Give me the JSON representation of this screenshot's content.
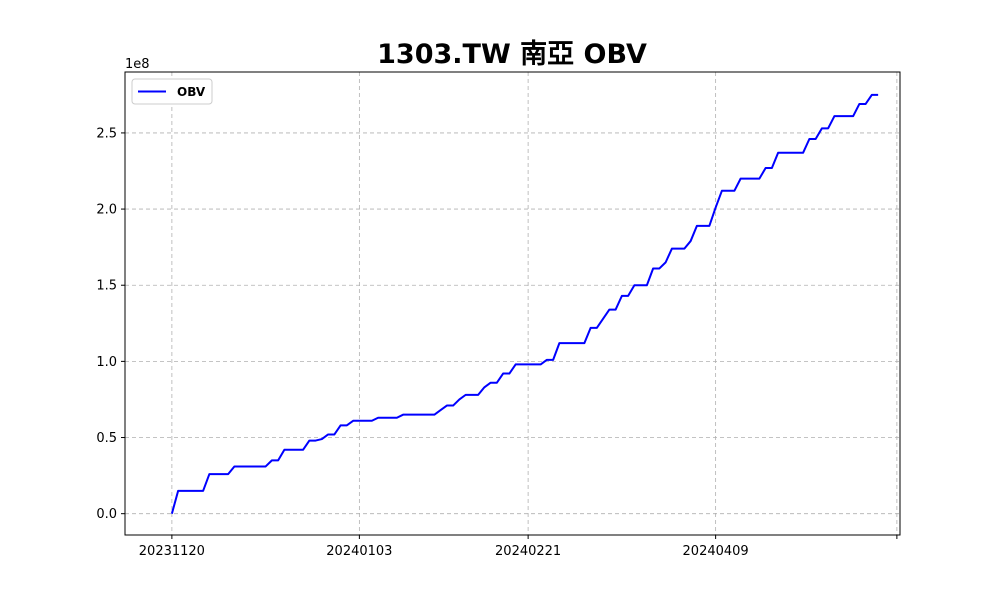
{
  "chart_data": {
    "type": "line",
    "title": "1303.TW 南亞 OBV",
    "xlabel": "",
    "ylabel": "",
    "y_multiplier_label": "1e8",
    "ylim": [
      -0.14,
      2.9
    ],
    "y_ticks": [
      0.0,
      0.5,
      1.0,
      1.5,
      2.0,
      2.5
    ],
    "y_tick_labels": [
      "0.0",
      "0.5",
      "1.0",
      "1.5",
      "2.0",
      "2.5"
    ],
    "x_tick_labels": [
      "20231120",
      "20240103",
      "20240221",
      "20240409",
      ""
    ],
    "x_tick_index": [
      0,
      30,
      57,
      87,
      116
    ],
    "xlim": [
      -7.5,
      116.5
    ],
    "grid": true,
    "grid_style": "dashed",
    "legend_position": "upper-left",
    "series": [
      {
        "name": "OBV",
        "color": "#0000ff",
        "values": [
          0.0,
          0.15,
          0.15,
          0.15,
          0.15,
          0.15,
          0.26,
          0.26,
          0.26,
          0.26,
          0.31,
          0.31,
          0.31,
          0.31,
          0.31,
          0.31,
          0.35,
          0.35,
          0.42,
          0.42,
          0.42,
          0.42,
          0.48,
          0.48,
          0.49,
          0.52,
          0.52,
          0.58,
          0.58,
          0.61,
          0.61,
          0.61,
          0.61,
          0.63,
          0.63,
          0.63,
          0.63,
          0.65,
          0.65,
          0.65,
          0.65,
          0.65,
          0.65,
          0.68,
          0.71,
          0.71,
          0.75,
          0.78,
          0.78,
          0.78,
          0.83,
          0.86,
          0.86,
          0.92,
          0.92,
          0.98,
          0.98,
          0.98,
          0.98,
          0.98,
          1.01,
          1.01,
          1.12,
          1.12,
          1.12,
          1.12,
          1.12,
          1.22,
          1.22,
          1.28,
          1.34,
          1.34,
          1.43,
          1.43,
          1.5,
          1.5,
          1.5,
          1.61,
          1.61,
          1.65,
          1.74,
          1.74,
          1.74,
          1.79,
          1.89,
          1.89,
          1.89,
          2.01,
          2.12,
          2.12,
          2.12,
          2.2,
          2.2,
          2.2,
          2.2,
          2.27,
          2.27,
          2.37,
          2.37,
          2.37,
          2.37,
          2.37,
          2.46,
          2.46,
          2.53,
          2.53,
          2.61,
          2.61,
          2.61,
          2.61,
          2.69,
          2.69,
          2.75,
          2.75
        ]
      }
    ]
  }
}
